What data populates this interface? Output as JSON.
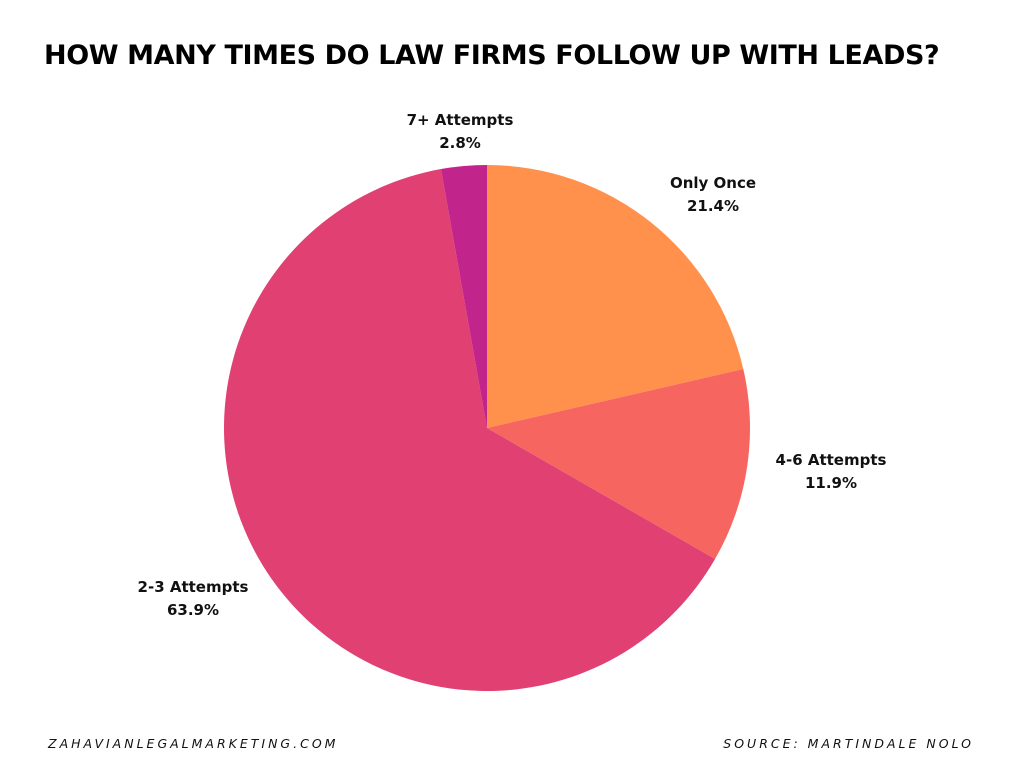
{
  "chart_data": {
    "type": "pie",
    "title": "HOW MANY TIMES DO LAW FIRMS FOLLOW UP WITH LEADS?",
    "slices": [
      {
        "label": "Only Once",
        "value": 21.4,
        "value_label": "21.4%",
        "color": "#FF914D"
      },
      {
        "label": "4-6 Attempts",
        "value": 11.9,
        "value_label": "11.9%",
        "color": "#F76560"
      },
      {
        "label": "2-3 Attempts",
        "value": 63.9,
        "value_label": "63.9%",
        "color": "#E14072"
      },
      {
        "label": "7+ Attempts",
        "value": 2.8,
        "value_label": "2.8%",
        "color": "#C1248A"
      }
    ],
    "start_angle": "12 o'clock",
    "direction": "clockwise",
    "legend": "none"
  },
  "footer": {
    "website": "ZAHAVIANLEGALMARKETING.COM",
    "source": "SOURCE: MARTINDALE NOLO"
  }
}
